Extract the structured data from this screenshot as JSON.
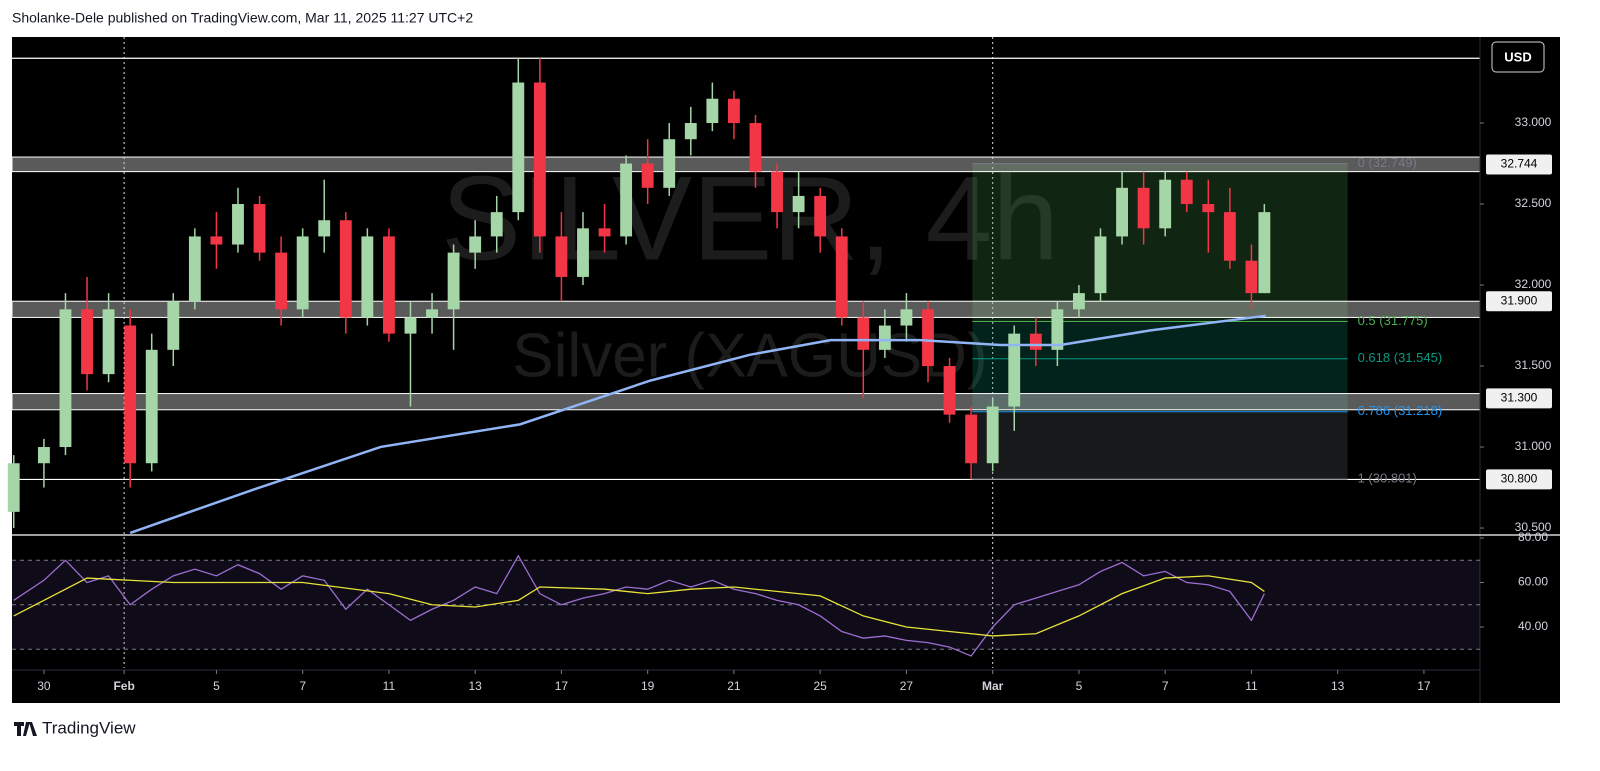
{
  "header": "Sholanke-Dele published on TradingView.com, Mar 11, 2025 11:27 UTC+2",
  "footer": "TradingView",
  "chart_data": [
    {
      "type": "candlestick",
      "title": "SILVER, 4h",
      "subtitle": "Silver (XAGUSD)",
      "currency": "USD",
      "up_color": "#a5d6a7",
      "down_color": "#f23645",
      "xlim": [
        -0.74,
        33.3
      ],
      "ylim": [
        30.457,
        33.531
      ],
      "yticks": [
        {
          "value": 30.5,
          "label": "30.500"
        },
        {
          "value": 31,
          "label": "31.000"
        },
        {
          "value": 31.5,
          "label": "31.500"
        },
        {
          "value": 32,
          "label": "32.000"
        },
        {
          "value": 32.5,
          "label": "32.500"
        },
        {
          "value": 33,
          "label": "33.000"
        }
      ],
      "separators": [
        1.86,
        22
      ],
      "x": [
        -0.7,
        0,
        0.5,
        1,
        1.5,
        2,
        2.5,
        3,
        3.5,
        4,
        4.5,
        5,
        5.5,
        6,
        6.5,
        7,
        7.5,
        8,
        8.5,
        9,
        9.5,
        10,
        10.5,
        11,
        11.5,
        12,
        12.5,
        13,
        13.5,
        14,
        14.5,
        15,
        15.5,
        16,
        16.5,
        17,
        17.5,
        18,
        18.5,
        19,
        19.5,
        20,
        20.5,
        21,
        21.5,
        22,
        22.5,
        23,
        23.5,
        24,
        24.5,
        25,
        25.5,
        26,
        26.5,
        27,
        27.5,
        28,
        28.3
      ],
      "open": [
        30.6,
        30.9,
        31.0,
        31.85,
        31.45,
        31.75,
        30.9,
        31.6,
        31.9,
        32.3,
        32.25,
        32.5,
        32.2,
        31.85,
        32.3,
        32.4,
        31.8,
        32.3,
        31.7,
        31.8,
        31.85,
        32.2,
        32.3,
        32.45,
        33.25,
        32.3,
        32.05,
        32.35,
        32.3,
        32.75,
        32.6,
        32.9,
        33.0,
        33.15,
        33.0,
        32.7,
        32.45,
        32.55,
        32.3,
        31.8,
        31.6,
        31.75,
        31.85,
        31.5,
        31.2,
        30.9,
        31.25,
        31.7,
        31.6,
        31.85,
        31.95,
        32.3,
        32.6,
        32.35,
        32.65,
        32.5,
        32.45,
        32.15,
        31.95
      ],
      "high": [
        30.95,
        31.05,
        31.95,
        32.05,
        31.95,
        31.85,
        31.7,
        31.95,
        32.35,
        32.45,
        32.6,
        32.55,
        32.3,
        32.35,
        32.65,
        32.45,
        32.35,
        32.35,
        31.9,
        31.95,
        32.25,
        32.4,
        32.55,
        33.4,
        33.4,
        32.45,
        32.45,
        32.5,
        32.8,
        32.9,
        33.0,
        33.1,
        33.25,
        33.2,
        33.05,
        32.75,
        32.7,
        32.6,
        32.35,
        31.9,
        31.85,
        31.95,
        31.9,
        31.55,
        31.25,
        31.3,
        31.75,
        31.8,
        31.9,
        32.0,
        32.35,
        32.7,
        32.7,
        32.7,
        32.7,
        32.65,
        32.6,
        32.25,
        32.5
      ],
      "low": [
        30.5,
        30.75,
        30.95,
        31.35,
        31.4,
        30.75,
        30.85,
        31.5,
        31.85,
        32.1,
        32.2,
        32.15,
        31.75,
        31.8,
        32.2,
        31.7,
        31.75,
        31.65,
        31.25,
        31.7,
        31.6,
        32.1,
        32.2,
        32.4,
        32.2,
        31.9,
        32.0,
        32.2,
        32.25,
        32.5,
        32.55,
        32.8,
        32.95,
        32.9,
        32.6,
        32.35,
        32.35,
        32.2,
        31.75,
        31.3,
        31.55,
        31.65,
        31.4,
        31.15,
        30.8,
        30.85,
        31.1,
        31.5,
        31.5,
        31.8,
        31.9,
        32.25,
        32.25,
        32.3,
        32.45,
        32.2,
        32.1,
        31.85,
        31.95
      ],
      "close": [
        30.9,
        31.0,
        31.85,
        31.45,
        31.85,
        30.9,
        31.6,
        31.9,
        32.3,
        32.25,
        32.5,
        32.2,
        31.85,
        32.3,
        32.4,
        31.8,
        32.3,
        31.7,
        31.8,
        31.85,
        32.2,
        32.3,
        32.45,
        33.25,
        32.3,
        32.05,
        32.35,
        32.3,
        32.75,
        32.6,
        32.9,
        33.0,
        33.15,
        33.0,
        32.7,
        32.45,
        32.55,
        32.3,
        31.8,
        31.6,
        31.75,
        31.85,
        31.5,
        31.2,
        30.9,
        31.25,
        31.7,
        31.6,
        31.85,
        31.95,
        32.3,
        32.6,
        32.35,
        32.65,
        32.5,
        32.45,
        32.15,
        31.95,
        32.45
      ],
      "series": [
        {
          "color": "#90b4f5",
          "x": [
            2.0,
            4.78,
            7.8,
            11.04,
            14.06,
            16.38,
            18.24,
            20.32,
            22.18,
            23.57,
            25.66,
            28.33
          ],
          "values": [
            30.47,
            30.73,
            31.0,
            31.14,
            31.41,
            31.57,
            31.66,
            31.66,
            31.63,
            31.63,
            31.72,
            31.81
          ]
        }
      ],
      "lines": [
        33.4,
        30.8
      ],
      "zones": [
        [
          32.7,
          32.79
        ],
        [
          31.8,
          31.9
        ],
        [
          31.23,
          31.33
        ]
      ],
      "levels": [
        32.744,
        {
          "value": 31.9,
          "label": "31.900"
        },
        {
          "value": 31.3,
          "label": "31.300"
        },
        {
          "value": 30.8,
          "label": "30.800"
        }
      ],
      "fib": {
        "x": [
          21.53,
          30.23
        ],
        "levels": [
          {
            "value": 32.749,
            "label": "0 (32.749)",
            "color": "#787b86"
          },
          {
            "value": 31.775,
            "label": "0.5 (31.775)",
            "color": "#4caf50"
          },
          {
            "value": 31.545,
            "label": "0.618 (31.545)",
            "color": "#089981"
          },
          {
            "value": 31.218,
            "label": "0.786 (31.218)",
            "color": "#2196f3"
          },
          {
            "value": 30.801,
            "label": "1 (30.801)",
            "color": "#787b86"
          }
        ]
      }
    },
    {
      "type": "line",
      "xlim": [
        -0.74,
        33.3
      ],
      "ylim": [
        21.6,
        81.35
      ],
      "yticks": [
        {
          "value": 80,
          "label": "80.00"
        },
        {
          "value": 60,
          "label": "60.00"
        },
        {
          "value": 40,
          "label": "40.00"
        }
      ],
      "band": [
        30,
        70
      ],
      "midline": 50,
      "xticks": [
        {
          "value": 0,
          "label": "30"
        },
        {
          "value": 1.86,
          "label": "Feb"
        },
        {
          "value": 4,
          "label": "5"
        },
        {
          "value": 6,
          "label": "7"
        },
        {
          "value": 8,
          "label": "11"
        },
        {
          "value": 10,
          "label": "13"
        },
        {
          "value": 12,
          "label": "17"
        },
        {
          "value": 14,
          "label": "19"
        },
        {
          "value": 16,
          "label": "21"
        },
        {
          "value": 18,
          "label": "25"
        },
        {
          "value": 20,
          "label": "27"
        },
        {
          "value": 22,
          "label": "Mar"
        },
        {
          "value": 24,
          "label": "5"
        },
        {
          "value": 26,
          "label": "7"
        },
        {
          "value": 28,
          "label": "11"
        },
        {
          "value": 30,
          "label": "13"
        },
        {
          "value": 32,
          "label": "17"
        }
      ],
      "series": [
        {
          "color": "#9b6fd1",
          "x": [
            -0.7,
            0,
            0.5,
            1,
            1.5,
            2,
            2.5,
            3,
            3.5,
            4,
            4.5,
            5,
            5.5,
            6,
            6.5,
            7,
            7.5,
            8,
            8.5,
            9,
            9.5,
            10,
            10.5,
            11,
            11.5,
            12,
            12.5,
            13,
            13.5,
            14,
            14.5,
            15,
            15.5,
            16,
            16.5,
            17,
            17.5,
            18,
            18.5,
            19,
            19.5,
            20,
            20.5,
            21,
            21.5,
            22,
            22.5,
            23,
            23.5,
            24,
            24.5,
            25,
            25.5,
            26,
            26.5,
            27,
            27.5,
            28,
            28.3
          ],
          "values": [
            52,
            61,
            70,
            60,
            63,
            50,
            57,
            63,
            66,
            63,
            68,
            64,
            57,
            63,
            61,
            48,
            57,
            50,
            43,
            48,
            52,
            58,
            55,
            72,
            55,
            50,
            53,
            55,
            58,
            57,
            61,
            58,
            61,
            57,
            55,
            52,
            50,
            45,
            38,
            35,
            36,
            34,
            33,
            31,
            27,
            40,
            50,
            53,
            56,
            59,
            65,
            69,
            63,
            65,
            60,
            59,
            56,
            43,
            55
          ]
        },
        {
          "color": "#e8e33a",
          "x": [
            -0.7,
            1,
            3,
            5,
            6,
            8,
            9,
            10,
            11,
            11.5,
            13,
            14,
            15,
            16,
            18,
            19,
            20,
            21,
            22,
            23,
            24,
            25,
            26,
            27,
            28,
            28.3
          ],
          "values": [
            45,
            62,
            60,
            60,
            60,
            55,
            50,
            49,
            52,
            58,
            57,
            55,
            57,
            58,
            54,
            45,
            40,
            38,
            36,
            37,
            45,
            55,
            62,
            63,
            60,
            56
          ]
        }
      ]
    }
  ]
}
